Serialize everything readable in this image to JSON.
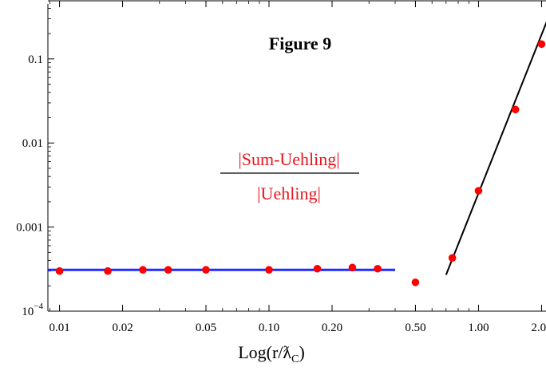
{
  "chart_data": {
    "type": "scatter",
    "title": "Figure 9",
    "xlabel": "Log(r/ƛC)",
    "xlabel_parts": {
      "main": "Log(r/",
      "symbol": "ƛ",
      "sub": "C",
      "close": ")"
    },
    "annotation": {
      "numerator": "|Sum-Uehling|",
      "denominator": "|Uehling|"
    },
    "x_scale": "log",
    "y_scale": "log",
    "xlim": [
      0.0088,
      2.1
    ],
    "ylim": [
      0.0001,
      0.45
    ],
    "x_ticks": [
      {
        "value": 0.01,
        "label": "0.01"
      },
      {
        "value": 0.02,
        "label": "0.02"
      },
      {
        "value": 0.05,
        "label": "0.05"
      },
      {
        "value": 0.1,
        "label": "0.10"
      },
      {
        "value": 0.2,
        "label": "0.20"
      },
      {
        "value": 0.5,
        "label": "0.50"
      },
      {
        "value": 1.0,
        "label": "1.00"
      },
      {
        "value": 2.0,
        "label": "2.00"
      }
    ],
    "y_ticks": [
      {
        "value": 0.1,
        "label": "0.1"
      },
      {
        "value": 0.01,
        "label": "0.01"
      },
      {
        "value": 0.001,
        "label": "0.001"
      },
      {
        "value": 0.0001,
        "label": "10",
        "exponent": "−4"
      }
    ],
    "series": [
      {
        "marker": "circle",
        "color": "#ff0000",
        "points": [
          {
            "x": 0.01,
            "y": 0.0003
          },
          {
            "x": 0.017,
            "y": 0.0003
          },
          {
            "x": 0.025,
            "y": 0.00031
          },
          {
            "x": 0.033,
            "y": 0.00031
          },
          {
            "x": 0.05,
            "y": 0.00031
          },
          {
            "x": 0.1,
            "y": 0.00031
          },
          {
            "x": 0.17,
            "y": 0.00032
          },
          {
            "x": 0.25,
            "y": 0.00033
          },
          {
            "x": 0.33,
            "y": 0.00032
          },
          {
            "x": 0.5,
            "y": 0.00022
          },
          {
            "x": 0.75,
            "y": 0.00043
          },
          {
            "x": 1.0,
            "y": 0.0027
          },
          {
            "x": 1.5,
            "y": 0.025
          },
          {
            "x": 2.0,
            "y": 0.15
          }
        ]
      }
    ],
    "lines": [
      {
        "color": "#1f2bff",
        "from": {
          "x": 0.0088,
          "y": 0.00031
        },
        "to": {
          "x": 0.4,
          "y": 0.00031
        }
      },
      {
        "color": "#000000",
        "from": {
          "x": 0.7,
          "y": 0.00027
        },
        "to": {
          "x": 2.12,
          "y": 0.28
        }
      }
    ]
  }
}
